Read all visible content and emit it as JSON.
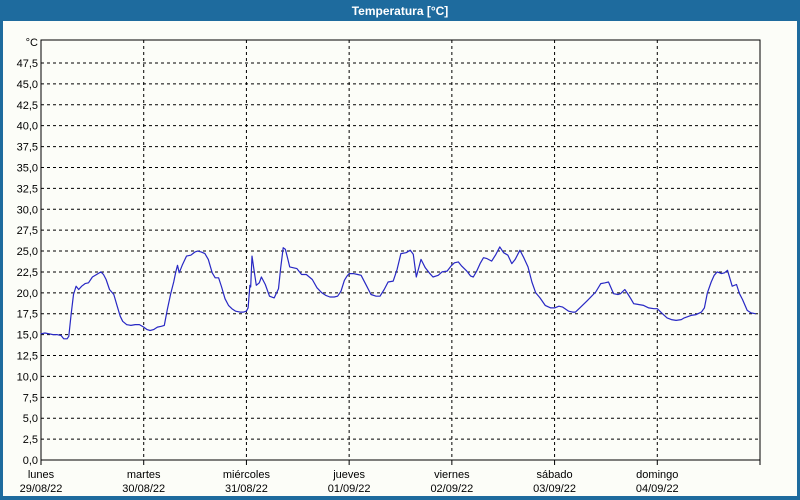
{
  "window": {
    "title": "Temperatura [°C]"
  },
  "colors": {
    "frame": "#1e6b9e",
    "background": "#fcfdf8",
    "plot_border": "#000000",
    "gridline": "#000000",
    "series_line": "#2828c4",
    "label_text": "#000000",
    "title_text": "#ffffff"
  },
  "chart_data": {
    "type": "line",
    "title": "Temperatura [°C]",
    "ylabel_unit": "°C",
    "grid": {
      "horizontal": "dashed",
      "vertical": "dashed at day boundaries"
    },
    "legend": "none",
    "y_axis": {
      "min": 0,
      "max": 47.5,
      "tick_step": 2.5,
      "decimal_separator": ",",
      "tick_labels_top_to_bottom": [
        "47,5",
        "45,0",
        "42,5",
        "40,0",
        "37,5",
        "35,0",
        "32,5",
        "30,0",
        "27,5",
        "25,0",
        "22,5",
        "20,0",
        "17,5",
        "15,0",
        "12,5",
        "10,0",
        "7,5",
        "5,0",
        "2,5",
        "0,0"
      ]
    },
    "x_axis": {
      "total_hours": 168,
      "hours_per_day": 24,
      "days": [
        {
          "name": "lunes",
          "date": "29/08/22"
        },
        {
          "name": "martes",
          "date": "30/08/22"
        },
        {
          "name": "miércoles",
          "date": "31/08/22"
        },
        {
          "name": "jueves",
          "date": "01/09/22"
        },
        {
          "name": "viernes",
          "date": "02/09/22"
        },
        {
          "name": "sábado",
          "date": "03/09/22"
        },
        {
          "name": "domingo",
          "date": "04/09/22"
        }
      ]
    },
    "series": [
      {
        "name": "Temperatura",
        "unit": "°C",
        "color": "#2828c4",
        "points_hour_temp": [
          [
            0,
            15.1
          ],
          [
            0.9,
            15.2
          ],
          [
            1.9,
            15.1
          ],
          [
            2.8,
            15.0
          ],
          [
            3.7,
            15.0
          ],
          [
            4.7,
            14.9
          ],
          [
            5.3,
            14.5
          ],
          [
            6.1,
            14.5
          ],
          [
            6.5,
            14.8
          ],
          [
            7.0,
            17.3
          ],
          [
            7.6,
            19.8
          ],
          [
            8.2,
            20.8
          ],
          [
            8.8,
            20.4
          ],
          [
            9.5,
            20.8
          ],
          [
            10.3,
            21.1
          ],
          [
            11.1,
            21.2
          ],
          [
            12.0,
            21.9
          ],
          [
            13.0,
            22.2
          ],
          [
            14.0,
            22.5
          ],
          [
            14.6,
            22.2
          ],
          [
            15.2,
            21.6
          ],
          [
            16.0,
            20.4
          ],
          [
            17.0,
            19.8
          ],
          [
            17.8,
            18.4
          ],
          [
            18.5,
            17.2
          ],
          [
            19.1,
            16.6
          ],
          [
            20.0,
            16.2
          ],
          [
            21.0,
            16.1
          ],
          [
            22.0,
            16.2
          ],
          [
            23.0,
            16.2
          ],
          [
            24.0,
            15.9
          ],
          [
            24.8,
            15.6
          ],
          [
            25.5,
            15.5
          ],
          [
            26.3,
            15.6
          ],
          [
            27.2,
            15.9
          ],
          [
            28.1,
            16.0
          ],
          [
            28.8,
            16.1
          ],
          [
            29.5,
            18.0
          ],
          [
            30.3,
            19.9
          ],
          [
            31.0,
            21.3
          ],
          [
            31.5,
            22.5
          ],
          [
            31.9,
            23.3
          ],
          [
            32.3,
            22.4
          ],
          [
            33.0,
            23.3
          ],
          [
            34.0,
            24.4
          ],
          [
            35.0,
            24.5
          ],
          [
            36.0,
            24.9
          ],
          [
            36.6,
            25.0
          ],
          [
            37.4,
            24.9
          ],
          [
            38.3,
            24.7
          ],
          [
            39.1,
            24.0
          ],
          [
            40.0,
            22.4
          ],
          [
            40.7,
            21.8
          ],
          [
            41.5,
            21.8
          ],
          [
            42.2,
            20.7
          ],
          [
            43.0,
            19.3
          ],
          [
            43.8,
            18.5
          ],
          [
            44.6,
            18.1
          ],
          [
            45.5,
            17.8
          ],
          [
            46.5,
            17.7
          ],
          [
            47.3,
            17.7
          ],
          [
            48.0,
            17.8
          ],
          [
            48.4,
            18.2
          ],
          [
            48.8,
            20.9
          ],
          [
            49.0,
            20.7
          ],
          [
            49.3,
            24.4
          ],
          [
            49.7,
            23.0
          ],
          [
            50.3,
            20.9
          ],
          [
            51.0,
            21.2
          ],
          [
            51.5,
            21.9
          ],
          [
            52.4,
            21.0
          ],
          [
            53.4,
            19.6
          ],
          [
            54.5,
            19.4
          ],
          [
            55.5,
            20.5
          ],
          [
            56.0,
            23.0
          ],
          [
            56.6,
            25.4
          ],
          [
            57.1,
            25.2
          ],
          [
            57.7,
            24.0
          ],
          [
            58.1,
            23.1
          ],
          [
            59.0,
            23.0
          ],
          [
            59.8,
            22.9
          ],
          [
            60.9,
            22.2
          ],
          [
            62.0,
            22.2
          ],
          [
            63.4,
            21.6
          ],
          [
            64.5,
            20.6
          ],
          [
            65.6,
            20.0
          ],
          [
            66.5,
            19.7
          ],
          [
            67.5,
            19.5
          ],
          [
            68.5,
            19.5
          ],
          [
            69.3,
            19.6
          ],
          [
            70.1,
            20.2
          ],
          [
            70.9,
            21.5
          ],
          [
            71.5,
            22.0
          ],
          [
            72.0,
            22.3
          ],
          [
            73.0,
            22.3
          ],
          [
            74.0,
            22.2
          ],
          [
            74.8,
            22.1
          ],
          [
            76.0,
            20.9
          ],
          [
            77.1,
            19.8
          ],
          [
            78.3,
            19.6
          ],
          [
            79.2,
            19.6
          ],
          [
            80.2,
            20.4
          ],
          [
            81.1,
            21.3
          ],
          [
            82.3,
            21.4
          ],
          [
            83.2,
            22.8
          ],
          [
            84.1,
            24.7
          ],
          [
            85.3,
            24.8
          ],
          [
            86.3,
            25.1
          ],
          [
            87.0,
            24.6
          ],
          [
            87.7,
            21.9
          ],
          [
            88.8,
            24.0
          ],
          [
            89.8,
            23.0
          ],
          [
            90.7,
            22.4
          ],
          [
            91.6,
            21.9
          ],
          [
            92.8,
            22.1
          ],
          [
            93.7,
            22.5
          ],
          [
            94.9,
            22.6
          ],
          [
            95.8,
            23.2
          ],
          [
            96.6,
            23.6
          ],
          [
            97.5,
            23.7
          ],
          [
            98.3,
            23.2
          ],
          [
            99.5,
            22.6
          ],
          [
            100.4,
            22.0
          ],
          [
            101.0,
            21.9
          ],
          [
            101.8,
            22.6
          ],
          [
            102.6,
            23.5
          ],
          [
            103.4,
            24.2
          ],
          [
            104.2,
            24.1
          ],
          [
            105.3,
            23.8
          ],
          [
            106.3,
            24.6
          ],
          [
            107.2,
            25.5
          ],
          [
            108.1,
            24.8
          ],
          [
            109.1,
            24.5
          ],
          [
            110.0,
            23.5
          ],
          [
            110.8,
            24.0
          ],
          [
            111.9,
            25.1
          ],
          [
            112.8,
            24.2
          ],
          [
            113.8,
            23.1
          ],
          [
            114.7,
            21.3
          ],
          [
            115.6,
            20.0
          ],
          [
            116.6,
            19.4
          ],
          [
            117.8,
            18.5
          ],
          [
            119.1,
            18.2
          ],
          [
            120.0,
            18.2
          ],
          [
            121.0,
            18.4
          ],
          [
            121.9,
            18.3
          ],
          [
            123.3,
            17.8
          ],
          [
            124.2,
            17.7
          ],
          [
            124.9,
            17.7
          ],
          [
            126.1,
            18.3
          ],
          [
            127.7,
            19.1
          ],
          [
            129.6,
            20.1
          ],
          [
            130.8,
            21.1
          ],
          [
            131.8,
            21.2
          ],
          [
            132.6,
            21.3
          ],
          [
            133.8,
            19.9
          ],
          [
            134.8,
            19.8
          ],
          [
            135.4,
            19.9
          ],
          [
            136.4,
            20.4
          ],
          [
            137.2,
            19.8
          ],
          [
            137.8,
            19.3
          ],
          [
            138.5,
            18.7
          ],
          [
            139.6,
            18.6
          ],
          [
            140.8,
            18.5
          ],
          [
            142.0,
            18.2
          ],
          [
            143.2,
            18.1
          ],
          [
            144.0,
            18.1
          ],
          [
            145.2,
            17.5
          ],
          [
            146.3,
            17.0
          ],
          [
            147.3,
            16.8
          ],
          [
            148.4,
            16.7
          ],
          [
            149.6,
            16.8
          ],
          [
            150.3,
            17.0
          ],
          [
            151.9,
            17.3
          ],
          [
            153.1,
            17.4
          ],
          [
            154.3,
            17.7
          ],
          [
            155.0,
            18.2
          ],
          [
            155.7,
            20.0
          ],
          [
            156.6,
            21.3
          ],
          [
            157.3,
            22.1
          ],
          [
            158.0,
            22.5
          ],
          [
            159.0,
            22.3
          ],
          [
            159.7,
            22.4
          ],
          [
            160.4,
            22.7
          ],
          [
            161.5,
            20.8
          ],
          [
            162.5,
            21.0
          ],
          [
            163.2,
            19.9
          ],
          [
            163.9,
            19.2
          ],
          [
            165.0,
            17.9
          ],
          [
            165.9,
            17.6
          ],
          [
            166.9,
            17.5
          ]
        ]
      }
    ]
  }
}
